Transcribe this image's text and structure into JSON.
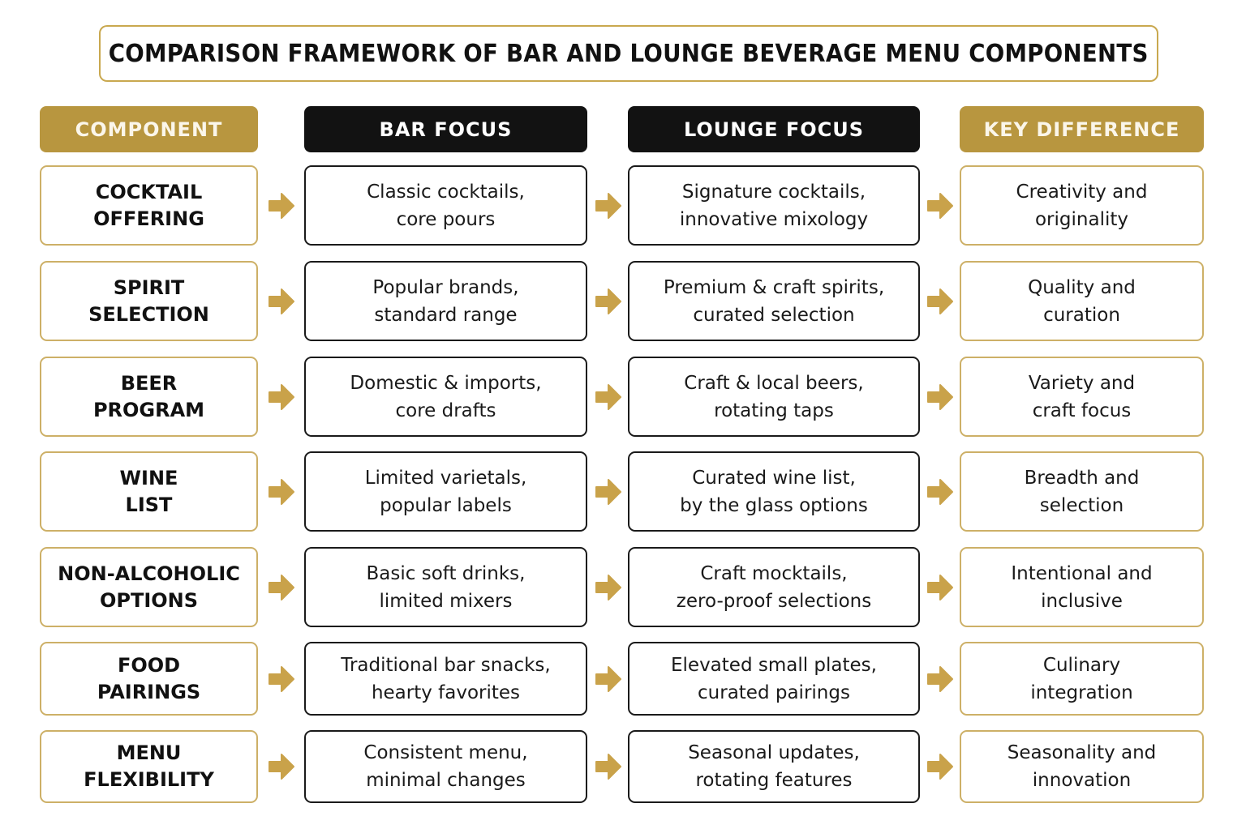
{
  "title": "COMPARISON FRAMEWORK OF BAR AND LOUNGE BEVERAGE MENU COMPONENTS",
  "headers": {
    "component": "COMPONENT",
    "bar": "BAR FOCUS",
    "lounge": "LOUNGE FOCUS",
    "difference": "KEY DIFFERENCE"
  },
  "colors": {
    "gold": "#b8963f",
    "gold_border": "#cdb067",
    "dark": "#121212",
    "arrow": "#c9a24a"
  },
  "rows": [
    {
      "component": "COCKTAIL\nOFFERING",
      "bar": "Classic cocktails,\ncore pours",
      "lounge": "Signature cocktails,\ninnovative mixology",
      "difference": "Creativity and\noriginality"
    },
    {
      "component": "SPIRIT\nSELECTION",
      "bar": "Popular brands,\nstandard range",
      "lounge": "Premium & craft spirits,\ncurated selection",
      "difference": "Quality and\ncuration"
    },
    {
      "component": "BEER\nPROGRAM",
      "bar": "Domestic & imports,\ncore drafts",
      "lounge": "Craft & local beers,\nrotating taps",
      "difference": "Variety and\ncraft focus"
    },
    {
      "component": "WINE\nLIST",
      "bar": "Limited varietals,\npopular labels",
      "lounge": "Curated wine list,\nby the glass options",
      "difference": "Breadth and\nselection"
    },
    {
      "component": "NON-ALCOHOLIC\nOPTIONS",
      "bar": "Basic soft drinks,\nlimited mixers",
      "lounge": "Craft mocktails,\nzero-proof selections",
      "difference": "Intentional and\ninclusive"
    },
    {
      "component": "FOOD\nPAIRINGS",
      "bar": "Traditional bar snacks,\nhearty favorites",
      "lounge": "Elevated small plates,\ncurated pairings",
      "difference": "Culinary\nintegration"
    },
    {
      "component": "MENU\nFLEXIBILITY",
      "bar": "Consistent menu,\nminimal changes",
      "lounge": "Seasonal updates,\nrotating features",
      "difference": "Seasonality and\ninnovation"
    }
  ]
}
